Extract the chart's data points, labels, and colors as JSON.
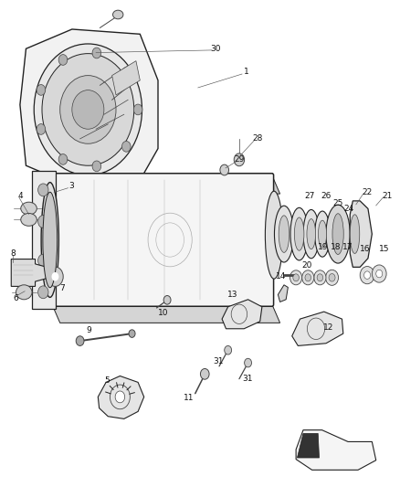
{
  "title": "",
  "bg_color": "#ffffff",
  "fig_width": 4.38,
  "fig_height": 5.33,
  "dpi": 100
}
